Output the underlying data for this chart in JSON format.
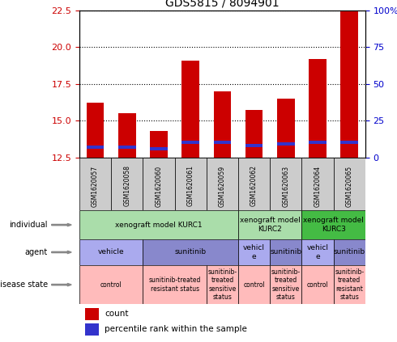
{
  "title": "GDS5815 / 8094901",
  "samples": [
    "GSM1620057",
    "GSM1620058",
    "GSM1620060",
    "GSM1620061",
    "GSM1620059",
    "GSM1620062",
    "GSM1620063",
    "GSM1620064",
    "GSM1620065"
  ],
  "count_values": [
    16.2,
    15.5,
    14.3,
    19.1,
    17.0,
    15.7,
    16.5,
    19.2,
    22.5
  ],
  "percentile_values": [
    13.2,
    13.2,
    13.1,
    13.5,
    13.5,
    13.3,
    13.4,
    13.5,
    13.5
  ],
  "ylim_left": [
    12.5,
    22.5
  ],
  "ylim_right": [
    0,
    100
  ],
  "yticks_left": [
    12.5,
    15.0,
    17.5,
    20.0,
    22.5
  ],
  "yticks_right": [
    0,
    25,
    50,
    75,
    100
  ],
  "bar_color_red": "#cc0000",
  "bar_color_blue": "#3333cc",
  "bg_color_chart": "#ffffff",
  "individual_row": {
    "spans": [
      {
        "start": 0,
        "end": 4,
        "label": "xenograft model KURC1",
        "color": "#aaddaa"
      },
      {
        "start": 5,
        "end": 6,
        "label": "xenograft model\nKURC2",
        "color": "#aaddaa"
      },
      {
        "start": 7,
        "end": 8,
        "label": "xenograft model\nKURC3",
        "color": "#44bb44"
      }
    ]
  },
  "agent_row": {
    "spans": [
      {
        "start": 0,
        "end": 1,
        "label": "vehicle",
        "color": "#aaaaee"
      },
      {
        "start": 2,
        "end": 4,
        "label": "sunitinib",
        "color": "#8888cc"
      },
      {
        "start": 5,
        "end": 5,
        "label": "vehicl\ne",
        "color": "#aaaaee"
      },
      {
        "start": 6,
        "end": 6,
        "label": "sunitinib",
        "color": "#8888cc"
      },
      {
        "start": 7,
        "end": 7,
        "label": "vehicl\ne",
        "color": "#aaaaee"
      },
      {
        "start": 8,
        "end": 8,
        "label": "sunitinib",
        "color": "#8888cc"
      }
    ]
  },
  "disease_row": {
    "spans": [
      {
        "start": 0,
        "end": 1,
        "label": "control",
        "color": "#ffbbbb"
      },
      {
        "start": 2,
        "end": 3,
        "label": "sunitinib-treated\nresistant status",
        "color": "#ffbbbb"
      },
      {
        "start": 4,
        "end": 4,
        "label": "sunitinib-\ntreated\nsensitive\nstatus",
        "color": "#ffbbbb"
      },
      {
        "start": 5,
        "end": 5,
        "label": "control",
        "color": "#ffbbbb"
      },
      {
        "start": 6,
        "end": 6,
        "label": "sunitinib-\ntreated\nsensitive\nstatus",
        "color": "#ffbbbb"
      },
      {
        "start": 7,
        "end": 7,
        "label": "control",
        "color": "#ffbbbb"
      },
      {
        "start": 8,
        "end": 8,
        "label": "sunitinib-\ntreated\nresistant\nstatus",
        "color": "#ffbbbb"
      }
    ]
  },
  "row_labels": [
    "individual",
    "agent",
    "disease state"
  ],
  "legend_red": "count",
  "legend_blue": "percentile rank within the sample",
  "left_axis_color": "#cc0000",
  "right_axis_color": "#0000cc",
  "tick_bg_color": "#cccccc"
}
